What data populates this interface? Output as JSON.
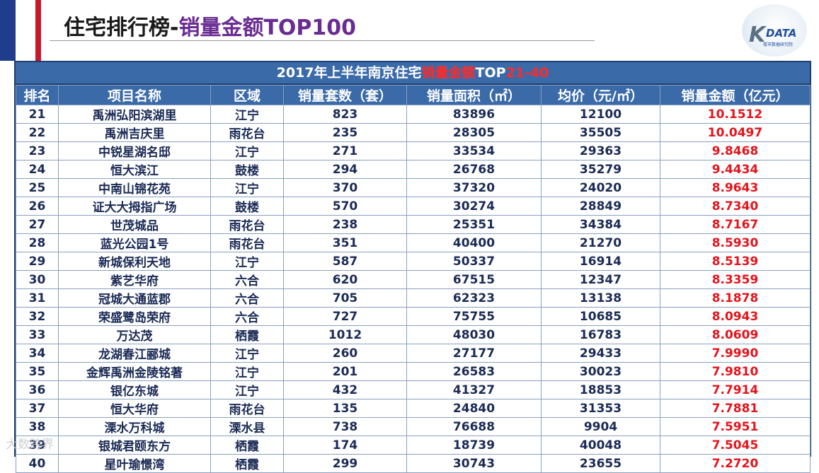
{
  "header": {
    "title_main": "住宅排行榜-",
    "title_accent": "销量金额TOP100"
  },
  "logo": {
    "k": "K",
    "text": "DATA",
    "sub": "楼市数据研究院"
  },
  "table": {
    "caption_prefix": "2017年上半年南京住宅",
    "caption_highlight": "销量金额",
    "caption_mid": "TOP",
    "caption_range": "21-40",
    "headers": [
      "排名",
      "项目名称",
      "区域",
      "销量套数（套）",
      "销量面积（㎡）",
      "均价（元/㎡）",
      "销量金额（亿元）"
    ],
    "rows": [
      [
        "21",
        "禹洲弘阳滨湖里",
        "江宁",
        "823",
        "83896",
        "12100",
        "10.1512"
      ],
      [
        "22",
        "禹洲吉庆里",
        "雨花台",
        "235",
        "28305",
        "35505",
        "10.0497"
      ],
      [
        "23",
        "中锐星湖名邸",
        "江宁",
        "271",
        "33534",
        "29363",
        "9.8468"
      ],
      [
        "24",
        "恒大滨江",
        "鼓楼",
        "294",
        "26768",
        "35279",
        "9.4434"
      ],
      [
        "25",
        "中南山锦花苑",
        "江宁",
        "370",
        "37320",
        "24020",
        "8.9643"
      ],
      [
        "26",
        "证大大拇指广场",
        "鼓楼",
        "570",
        "30274",
        "28849",
        "8.7340"
      ],
      [
        "27",
        "世茂城品",
        "雨花台",
        "238",
        "25351",
        "34384",
        "8.7167"
      ],
      [
        "28",
        "蓝光公园1号",
        "雨花台",
        "351",
        "40400",
        "21270",
        "8.5930"
      ],
      [
        "29",
        "新城保利天地",
        "江宁",
        "587",
        "50337",
        "16914",
        "8.5139"
      ],
      [
        "30",
        "紫艺华府",
        "六合",
        "620",
        "67515",
        "12347",
        "8.3359"
      ],
      [
        "31",
        "冠城大通蓝郡",
        "六合",
        "705",
        "62323",
        "13138",
        "8.1878"
      ],
      [
        "32",
        "荣盛鹭岛荣府",
        "六合",
        "727",
        "75755",
        "10685",
        "8.0943"
      ],
      [
        "33",
        "万达茂",
        "栖霞",
        "1012",
        "48030",
        "16783",
        "8.0609"
      ],
      [
        "34",
        "龙湖春江郦城",
        "江宁",
        "260",
        "27177",
        "29433",
        "7.9990"
      ],
      [
        "35",
        "金辉禹洲金陵铭著",
        "江宁",
        "201",
        "26583",
        "30023",
        "7.9810"
      ],
      [
        "36",
        "银亿东城",
        "江宁",
        "432",
        "41327",
        "18853",
        "7.7914"
      ],
      [
        "37",
        "恒大华府",
        "雨花台",
        "135",
        "24840",
        "31353",
        "7.7881"
      ],
      [
        "38",
        "溧水万科城",
        "溧水县",
        "738",
        "76688",
        "9904",
        "7.5951"
      ],
      [
        "39",
        "银城君颐东方",
        "栖霞",
        "174",
        "18739",
        "40048",
        "7.5045"
      ],
      [
        "40",
        "星叶瑜憬湾",
        "栖霞",
        "299",
        "30743",
        "23655",
        "7.2720"
      ]
    ]
  },
  "watermark": "大数跨界",
  "colors": {
    "header_bg": "#3a6aa8",
    "amount_text": "#e3141c",
    "title_accent": "#6a2c91"
  }
}
